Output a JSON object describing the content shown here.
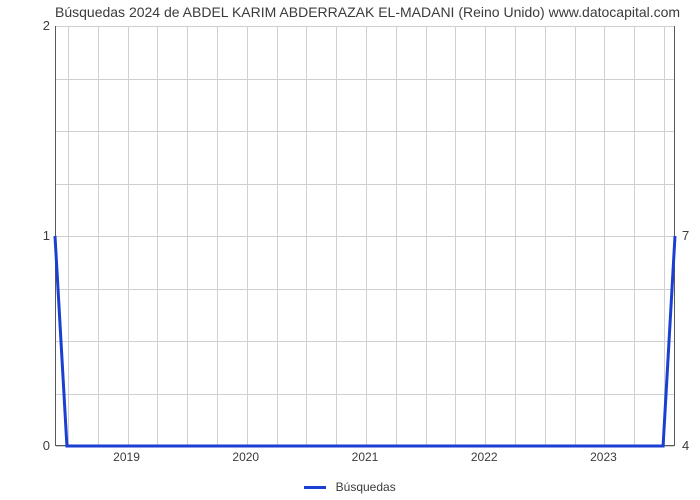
{
  "chart": {
    "type": "line",
    "title": "Búsquedas 2024 de ABDEL KARIM ABDERRAZAK EL-MADANI (Reino Unido) www.datocapital.com",
    "title_fontsize": 14,
    "title_color": "#3b3b3b",
    "background_color": "#ffffff",
    "plot_border_color": "#595959",
    "grid_color": "#d0d0d0",
    "axis_tick_color": "#3b3b3b",
    "x": {
      "domain": [
        2018.4,
        2023.6
      ],
      "tick_labels": [
        "2019",
        "2020",
        "2021",
        "2022",
        "2023"
      ],
      "tick_values": [
        2019,
        2020,
        2021,
        2022,
        2023
      ],
      "minor_per_interval": 4,
      "show_grid": true
    },
    "y_left": {
      "domain": [
        0,
        2
      ],
      "tick_labels": [
        "0",
        "1",
        "2"
      ],
      "tick_values": [
        0,
        1,
        2
      ],
      "minor_between": 3,
      "show_grid": true
    },
    "y_right": {
      "tick_labels": [
        "4",
        "7"
      ],
      "tick_values": [
        0,
        1
      ],
      "scale_note": "secondary axis, maps 4→0 and 7→1 on left scale"
    },
    "series": [
      {
        "label": "Búsquedas",
        "color": "#1a3fd1",
        "line_width": 3,
        "x": [
          2018.4,
          2018.5,
          2023.5,
          2023.6
        ],
        "y": [
          1,
          0,
          0,
          1
        ]
      }
    ],
    "legend": {
      "position": "bottom-center",
      "fontsize": 12
    }
  }
}
